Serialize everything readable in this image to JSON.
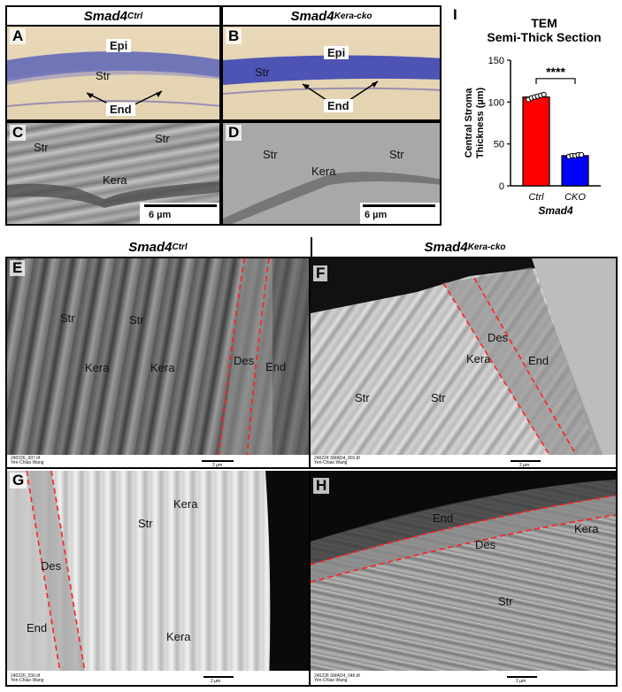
{
  "top_headers": {
    "ctrl": {
      "base": "Smad4",
      "sup": "Ctrl"
    },
    "cko": {
      "base": "Smad4",
      "sup": "Kera-cko"
    }
  },
  "bottom_headers": {
    "ctrl": {
      "base": "Smad4",
      "sup": "Ctrl"
    },
    "cko": {
      "base": "Smad4",
      "sup": "Kera-cko"
    }
  },
  "panels": {
    "A": {
      "letter": "A",
      "labels": {
        "epi": "Epi",
        "str": "Str",
        "end": "End"
      }
    },
    "B": {
      "letter": "B",
      "labels": {
        "epi": "Epi",
        "str": "Str",
        "end": "End"
      }
    },
    "C": {
      "letter": "C",
      "labels": {
        "str1": "Str",
        "str2": "Str",
        "kera": "Kera"
      },
      "scale": "6 µm"
    },
    "D": {
      "letter": "D",
      "labels": {
        "str1": "Str",
        "str2": "Str",
        "kera": "Kera"
      },
      "scale": "6 µm"
    },
    "E": {
      "letter": "E",
      "labels": {
        "str1": "Str",
        "str2": "Str",
        "kera1": "Kera",
        "kera2": "Kera",
        "des": "Des",
        "end": "End"
      },
      "caption1": "240226_007.tif",
      "caption2": "Yen-Chiao Wang",
      "scale": "2 µm"
    },
    "F": {
      "letter": "F",
      "labels": {
        "des": "Des",
        "end": "End",
        "kera": "Kera",
        "str1": "Str",
        "str2": "Str"
      },
      "caption1": "240224 SMAD4_001.tif",
      "caption2": "Yen-Chiao Wang",
      "scale": "2 µm"
    },
    "G": {
      "letter": "G",
      "labels": {
        "kera1": "Kera",
        "str": "Str",
        "des": "Des",
        "end": "End",
        "kera2": "Kera"
      },
      "caption1": "240226_030.tif",
      "caption2": "Yen-Chiao Wang",
      "scale": "2 µm"
    },
    "H": {
      "letter": "H",
      "labels": {
        "end": "End",
        "des": "Des",
        "kera": "Kera",
        "str": "Str"
      },
      "caption1": "240228 SMAD4_046.tif",
      "caption2": "Yen-Chiao Wang",
      "scale": "2 µm"
    }
  },
  "chart_I": {
    "letter": "I",
    "title_line1": "TEM",
    "title_line2": "Semi-Thick Section",
    "ylabel_line1": "Central Stroma",
    "ylabel_line2": "Thickness (µm)",
    "xlabel": "Smad4",
    "significance": "****",
    "ticks": [
      "0",
      "50",
      "100",
      "150"
    ]
  },
  "chart_data": {
    "type": "bar",
    "title": "TEM Semi-Thick Section",
    "categories": [
      "Ctrl",
      "CKO"
    ],
    "values": [
      106,
      36
    ],
    "colors": [
      "#ff0000",
      "#0000ff"
    ],
    "points": [
      [
        103,
        105,
        106,
        107,
        108,
        109
      ],
      [
        35,
        36,
        36,
        37,
        37
      ]
    ],
    "ylabel": "Central Stroma Thickness (µm)",
    "xlabel": "Smad4",
    "ylim": [
      0,
      150
    ],
    "yticks": [
      0,
      50,
      100,
      150
    ],
    "significance": "****"
  }
}
